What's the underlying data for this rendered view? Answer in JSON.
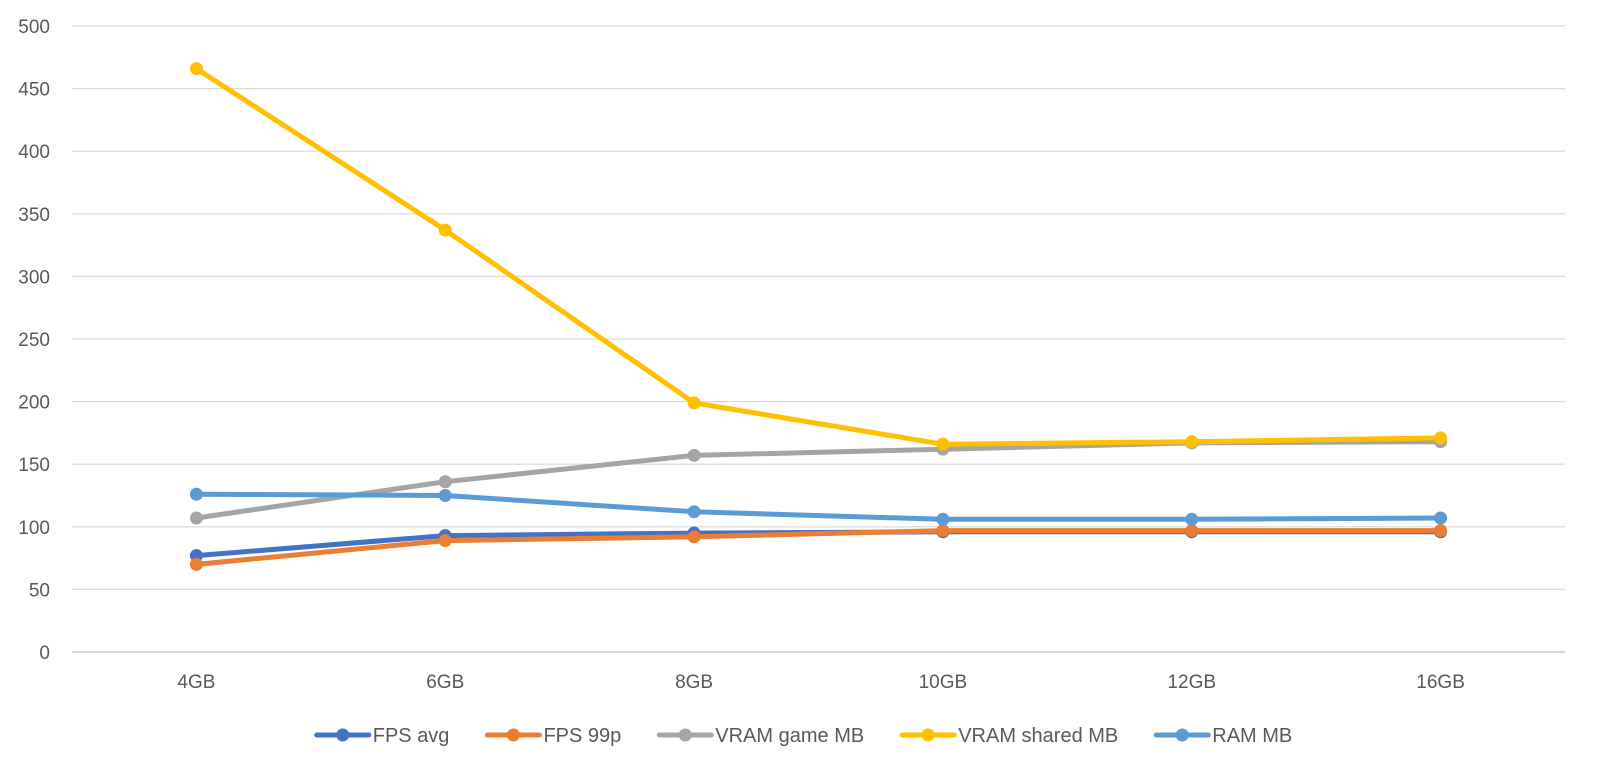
{
  "chart_data": {
    "type": "line",
    "title": "",
    "xlabel": "",
    "ylabel": "",
    "categories": [
      "4GB",
      "6GB",
      "8GB",
      "10GB",
      "12GB",
      "16GB"
    ],
    "ylim": [
      0,
      500
    ],
    "yticks": [
      0,
      50,
      100,
      150,
      200,
      250,
      300,
      350,
      400,
      450,
      500
    ],
    "grid": true,
    "legend_position": "bottom",
    "series": [
      {
        "name": "FPS avg",
        "color": "#4472C4",
        "values": [
          77,
          93,
          95,
          96,
          96,
          96
        ]
      },
      {
        "name": "FPS 99p",
        "color": "#ED7D31",
        "values": [
          70,
          89,
          92,
          97,
          97,
          97
        ]
      },
      {
        "name": "VRAM game MB",
        "color": "#A5A5A5",
        "values": [
          107,
          136,
          157,
          162,
          167,
          168
        ]
      },
      {
        "name": "VRAM shared MB",
        "color": "#FFC000",
        "values": [
          466,
          337,
          199,
          166,
          168,
          171
        ]
      },
      {
        "name": "RAM MB",
        "color": "#5B9BD5",
        "values": [
          126,
          125,
          112,
          106,
          106,
          107
        ]
      }
    ]
  }
}
